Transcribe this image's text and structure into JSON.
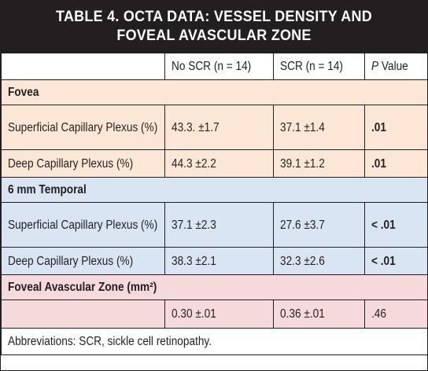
{
  "title": "TABLE 4. OCTA DATA: VESSEL DENSITY AND FOVEAL AVASCULAR ZONE",
  "columns": {
    "c1": "No SCR (n = 14)",
    "c2": "SCR (n = 14)",
    "p_italic": "P",
    "p_rest": " Value"
  },
  "sections": [
    {
      "name": "Fovea",
      "rows": [
        {
          "label": "Superficial Capillary Plexus (%)",
          "no_scr": "43.3. ±1.7",
          "scr": "37.1 ±1.4",
          "p": ".01"
        },
        {
          "label": "Deep Capillary Plexus (%)",
          "no_scr": "44.3 ±2.2",
          "scr": "39.1 ±1.2",
          "p": ".01"
        }
      ]
    },
    {
      "name": "6 mm Temporal",
      "rows": [
        {
          "label": "Superficial Capillary Plexus (%)",
          "no_scr": "37.1 ±2.3",
          "scr": "27.6 ±3.7",
          "p": "< .01"
        },
        {
          "label": "Deep Capillary Plexus (%)",
          "no_scr": "38.3 ±2.1",
          "scr": "32.3 ±2.6",
          "p": "< .01"
        }
      ]
    },
    {
      "name": "Foveal Avascular Zone (mm²)",
      "rows": [
        {
          "label": "",
          "no_scr": "0.30 ±.01",
          "scr": "0.36 ±.01",
          "p": ".46"
        }
      ]
    }
  ],
  "footnote": "Abbreviations: SCR, sickle cell retinopathy."
}
